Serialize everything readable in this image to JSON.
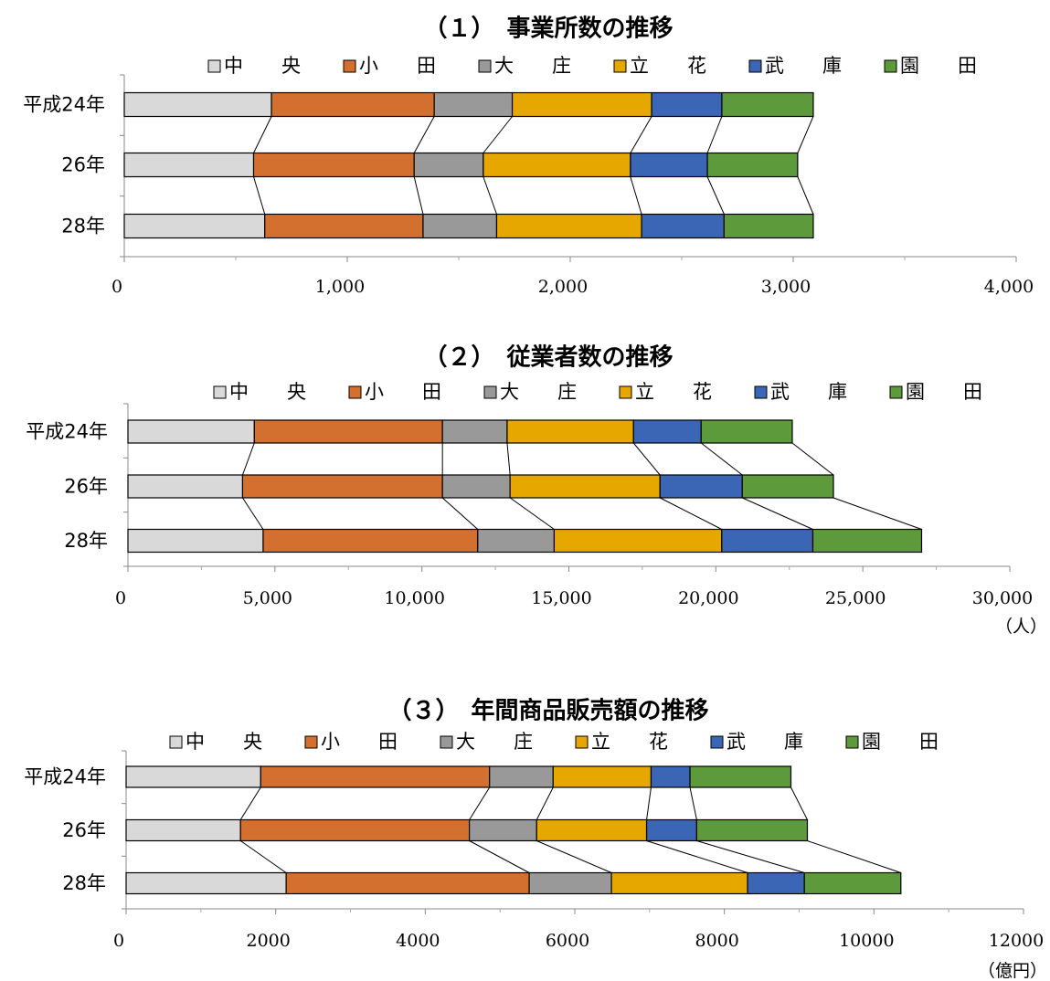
{
  "chart_data": [
    {
      "type": "bar",
      "stacked": true,
      "orientation": "horizontal",
      "title": "（１）　事業所数の推移",
      "categories": [
        "平成24年",
        "26年",
        "28年"
      ],
      "series": [
        {
          "name": "中　　央",
          "color": "#d9d9d9",
          "values": [
            660,
            580,
            630
          ]
        },
        {
          "name": "小　　田",
          "color": "#d4702f",
          "values": [
            730,
            720,
            710
          ]
        },
        {
          "name": "大　　庄",
          "color": "#999999",
          "values": [
            350,
            310,
            330
          ]
        },
        {
          "name": "立　　花",
          "color": "#e6a800",
          "values": [
            625,
            660,
            650
          ]
        },
        {
          "name": "武　　庫",
          "color": "#3b65b5",
          "values": [
            315,
            345,
            370
          ]
        },
        {
          "name": "園　　田",
          "color": "#5d9a3c",
          "values": [
            410,
            405,
            400
          ]
        }
      ],
      "xlim": [
        0,
        4000
      ],
      "ticks": [
        "0",
        "1,000",
        "2,000",
        "3,000",
        "4,000"
      ],
      "unit": "",
      "legend": "top"
    },
    {
      "type": "bar",
      "stacked": true,
      "orientation": "horizontal",
      "title": "（２）　従業者数の推移",
      "categories": [
        "平成24年",
        "26年",
        "28年"
      ],
      "series": [
        {
          "name": "中　　央",
          "color": "#d9d9d9",
          "values": [
            4300,
            3900,
            4600
          ]
        },
        {
          "name": "小　　田",
          "color": "#d4702f",
          "values": [
            6400,
            6800,
            7300
          ]
        },
        {
          "name": "大　　庄",
          "color": "#999999",
          "values": [
            2200,
            2300,
            2600
          ]
        },
        {
          "name": "立　　花",
          "color": "#e6a800",
          "values": [
            4300,
            5100,
            5700
          ]
        },
        {
          "name": "武　　庫",
          "color": "#3b65b5",
          "values": [
            2300,
            2800,
            3100
          ]
        },
        {
          "name": "園　　田",
          "color": "#5d9a3c",
          "values": [
            3100,
            3100,
            3700
          ]
        }
      ],
      "xlim": [
        0,
        30000
      ],
      "ticks": [
        "0",
        "5,000",
        "10,000",
        "15,000",
        "20,000",
        "25,000",
        "30,000"
      ],
      "unit": "（人）",
      "legend": "top"
    },
    {
      "type": "bar",
      "stacked": true,
      "orientation": "horizontal",
      "title": "（３）　年間商品販売額の推移",
      "categories": [
        "平成24年",
        "26年",
        "28年"
      ],
      "series": [
        {
          "name": "中　　央",
          "color": "#d9d9d9",
          "values": [
            1800,
            1530,
            2140
          ]
        },
        {
          "name": "小　　田",
          "color": "#d4702f",
          "values": [
            3060,
            3060,
            3250
          ]
        },
        {
          "name": "大　　庄",
          "color": "#999999",
          "values": [
            850,
            900,
            1100
          ]
        },
        {
          "name": "立　　花",
          "color": "#e6a800",
          "values": [
            1310,
            1470,
            1820
          ]
        },
        {
          "name": "武　　庫",
          "color": "#3b65b5",
          "values": [
            520,
            670,
            760
          ]
        },
        {
          "name": "園　　田",
          "color": "#5d9a3c",
          "values": [
            1350,
            1480,
            1290
          ]
        }
      ],
      "xlim": [
        0,
        12000
      ],
      "ticks": [
        "0",
        "2000",
        "4000",
        "6000",
        "8000",
        "10000",
        "12000"
      ],
      "unit": "（億円）",
      "legend": "top"
    }
  ]
}
